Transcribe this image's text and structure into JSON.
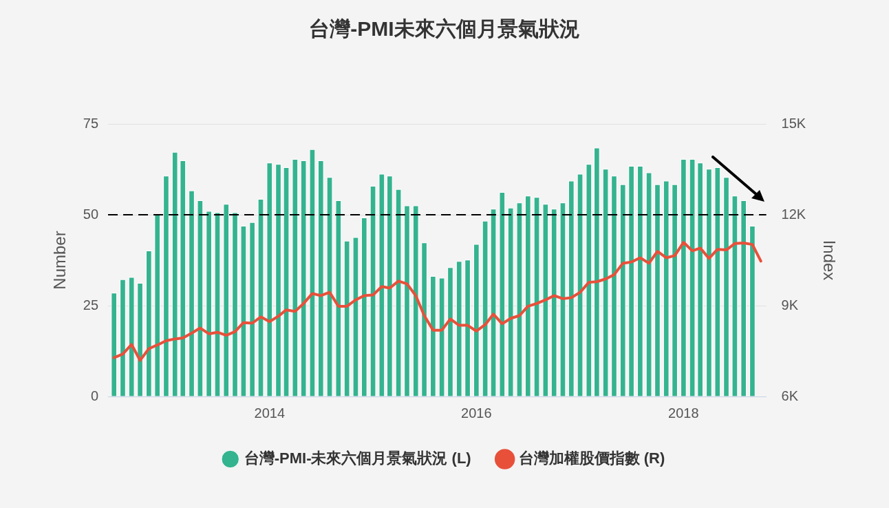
{
  "chart_data": {
    "type": "bar",
    "title": "台灣-PMI未來六個月景氣狀況",
    "x": [
      "2012-07",
      "2012-08",
      "2012-09",
      "2012-10",
      "2012-11",
      "2012-12",
      "2013-01",
      "2013-02",
      "2013-03",
      "2013-04",
      "2013-05",
      "2013-06",
      "2013-07",
      "2013-08",
      "2013-09",
      "2013-10",
      "2013-11",
      "2013-12",
      "2014-01",
      "2014-02",
      "2014-03",
      "2014-04",
      "2014-05",
      "2014-06",
      "2014-07",
      "2014-08",
      "2014-09",
      "2014-10",
      "2014-11",
      "2014-12",
      "2015-01",
      "2015-02",
      "2015-03",
      "2015-04",
      "2015-05",
      "2015-06",
      "2015-07",
      "2015-08",
      "2015-09",
      "2015-10",
      "2015-11",
      "2015-12",
      "2016-01",
      "2016-02",
      "2016-03",
      "2016-04",
      "2016-05",
      "2016-06",
      "2016-07",
      "2016-08",
      "2016-09",
      "2016-10",
      "2016-11",
      "2016-12",
      "2017-01",
      "2017-02",
      "2017-03",
      "2017-04",
      "2017-05",
      "2017-06",
      "2017-07",
      "2017-08",
      "2017-09",
      "2017-10",
      "2017-11",
      "2017-12",
      "2018-01",
      "2018-02",
      "2018-03",
      "2018-04",
      "2018-05",
      "2018-06",
      "2018-07",
      "2018-08",
      "2018-09",
      "2018-10"
    ],
    "series": [
      {
        "name": "台灣-PMI-未來六個月景氣狀況 (L)",
        "color": "#34b38f",
        "values": [
          28.5,
          32.2,
          32.8,
          31.2,
          40.1,
          50.0,
          60.7,
          67.2,
          64.9,
          56.6,
          53.9,
          51.0,
          50.6,
          52.9,
          50.6,
          46.9,
          47.9,
          54.3,
          64.3,
          63.9,
          63.0,
          65.3,
          64.9,
          68.0,
          64.9,
          60.3,
          53.9,
          42.8,
          43.8,
          49.2,
          57.9,
          61.2,
          60.7,
          57.0,
          52.5,
          52.5,
          42.3,
          33.1,
          32.6,
          35.5,
          37.2,
          37.6,
          41.9,
          48.3,
          51.6,
          56.2,
          51.9,
          53.3,
          55.2,
          54.8,
          52.9,
          51.6,
          53.3,
          59.3,
          61.2,
          63.9,
          68.4,
          62.6,
          60.7,
          58.3,
          63.4,
          63.4,
          61.6,
          58.3,
          59.3,
          58.3,
          65.3,
          65.3,
          64.3,
          62.6,
          63.0,
          60.3,
          55.2,
          53.9,
          46.9,
          null
        ]
      },
      {
        "name": "台灣加權股價指數 (R)",
        "type": "line",
        "axis": "y2",
        "color": "#e8503a",
        "values": [
          7280,
          7400,
          7720,
          7190,
          7580,
          7700,
          7840,
          7900,
          7930,
          8090,
          8260,
          8070,
          8120,
          8020,
          8140,
          8440,
          8420,
          8630,
          8470,
          8650,
          8860,
          8810,
          9070,
          9400,
          9330,
          9440,
          8980,
          8980,
          9190,
          9330,
          9350,
          9630,
          9580,
          9810,
          9720,
          9330,
          8670,
          8190,
          8190,
          8560,
          8350,
          8350,
          8160,
          8370,
          8720,
          8400,
          8580,
          8670,
          8980,
          9070,
          9190,
          9330,
          9230,
          9260,
          9440,
          9770,
          9790,
          9880,
          10020,
          10400,
          10440,
          10580,
          10400,
          10790,
          10580,
          10650,
          11090,
          10810,
          10900,
          10560,
          10860,
          10840,
          11050,
          11070,
          11020,
          10470
        ]
      }
    ],
    "xlim": [
      "2012-06-10",
      "2018-10-20"
    ],
    "xticks": [
      "2014",
      "2016",
      "2018"
    ],
    "ylim": [
      0,
      75
    ],
    "yticks": [
      0,
      25,
      50,
      75
    ],
    "y2lim": [
      6000,
      15000
    ],
    "y2ticks": [
      {
        "value": 6000,
        "label": "6K"
      },
      {
        "value": 9000,
        "label": "9K"
      },
      {
        "value": 12000,
        "label": "12K"
      },
      {
        "value": 15000,
        "label": "15K"
      }
    ],
    "ylabel": "Number",
    "y2label": "Index",
    "ref_lines": [
      {
        "axis": "y",
        "value": 50,
        "color": "#000000",
        "line_style": "dashed"
      }
    ],
    "grid": "y",
    "legend": "bottom"
  }
}
